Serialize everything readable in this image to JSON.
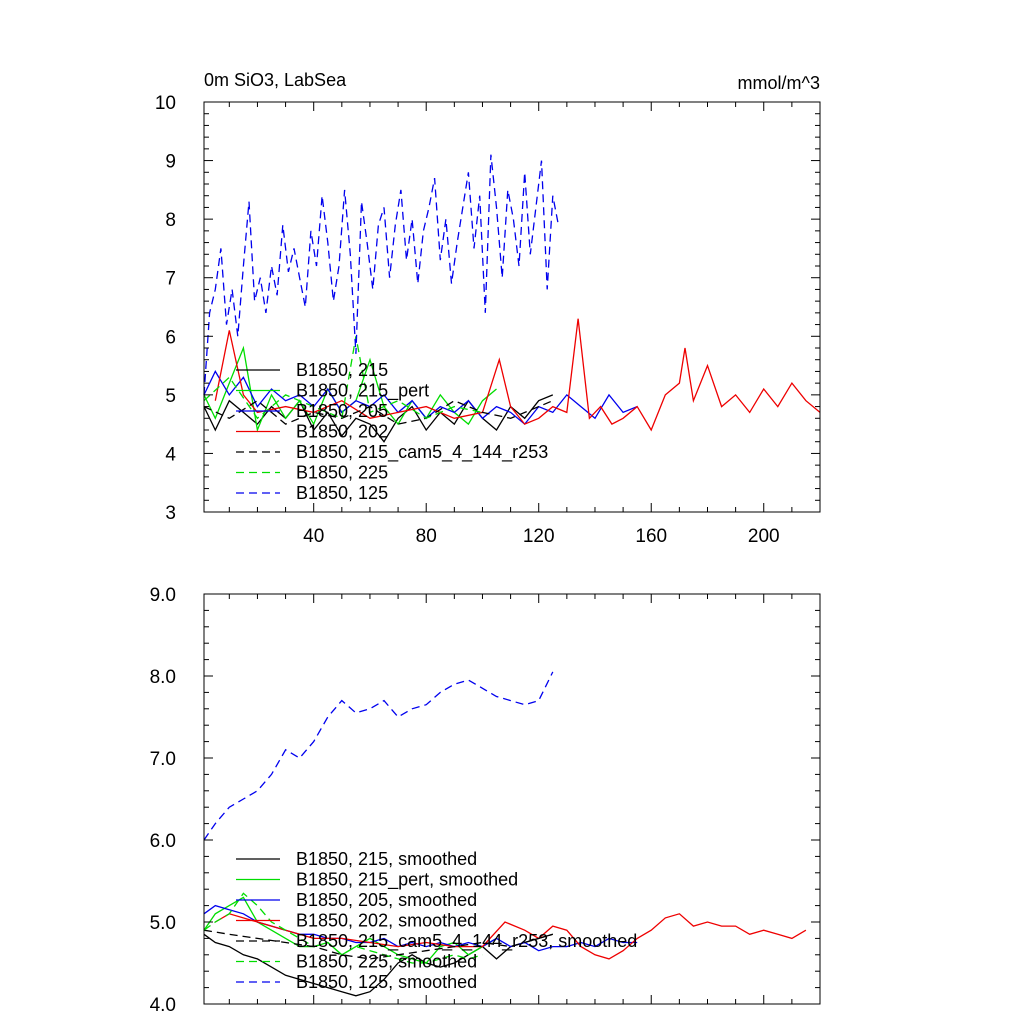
{
  "chart_data": [
    {
      "type": "line",
      "title": "0m SiO3, LabSea",
      "units": "mmol/m^3",
      "xlim": [
        1,
        220
      ],
      "ylim": [
        3,
        10
      ],
      "xticks": [
        40,
        80,
        120,
        160,
        200
      ],
      "yticks": [
        3,
        4,
        5,
        6,
        7,
        8,
        9,
        10
      ],
      "ytick_labels": [
        "3",
        "4",
        "5",
        "6",
        "7",
        "8",
        "9",
        "10"
      ],
      "grid": false,
      "legend_position": "left",
      "series": [
        {
          "name": "B1850, 215",
          "color": "#000000",
          "dash": "solid",
          "x": [
            1,
            5,
            10,
            15,
            20,
            25,
            30,
            35,
            40,
            45,
            50,
            55,
            60,
            65,
            70,
            75,
            80,
            85,
            90,
            95,
            100,
            105,
            110,
            115,
            120,
            125
          ],
          "y": [
            4.8,
            4.4,
            4.9,
            4.7,
            4.5,
            4.8,
            4.6,
            4.9,
            4.4,
            4.7,
            4.3,
            4.6,
            4.5,
            4.2,
            4.6,
            4.8,
            4.4,
            4.7,
            4.5,
            4.9,
            4.6,
            4.4,
            4.8,
            4.6,
            4.9,
            5.0
          ]
        },
        {
          "name": "B1850, 215_pert",
          "color": "#00dd00",
          "dash": "solid",
          "x": [
            1,
            5,
            10,
            15,
            20,
            25,
            30,
            35,
            40,
            45,
            50,
            55,
            60,
            65,
            70,
            75,
            80,
            85,
            90,
            95,
            100,
            105
          ],
          "y": [
            5.0,
            4.6,
            5.2,
            5.8,
            4.4,
            5.0,
            4.6,
            4.9,
            4.5,
            5.1,
            4.7,
            4.9,
            5.6,
            4.8,
            4.5,
            4.9,
            4.6,
            5.0,
            4.7,
            4.5,
            4.9,
            5.1
          ]
        },
        {
          "name": "B1850, 205",
          "color": "#0000ee",
          "dash": "solid",
          "x": [
            1,
            5,
            10,
            15,
            20,
            25,
            30,
            35,
            40,
            45,
            50,
            55,
            60,
            65,
            70,
            75,
            80,
            85,
            90,
            95,
            100,
            105,
            110,
            115,
            120,
            125,
            130,
            135,
            140,
            145,
            150,
            155
          ],
          "y": [
            5.0,
            5.4,
            5.0,
            5.3,
            4.8,
            5.1,
            4.9,
            5.0,
            4.8,
            5.1,
            4.7,
            4.9,
            4.8,
            5.0,
            4.7,
            4.9,
            4.6,
            4.8,
            4.7,
            4.9,
            4.6,
            4.8,
            4.7,
            4.5,
            4.8,
            4.7,
            5.0,
            4.8,
            4.6,
            5.0,
            4.7,
            4.8
          ]
        },
        {
          "name": "B1850, 202",
          "color": "#ee0000",
          "dash": "solid",
          "x": [
            5,
            10,
            15,
            20,
            30,
            40,
            50,
            60,
            70,
            80,
            90,
            100,
            106,
            110,
            115,
            120,
            125,
            130,
            134,
            138,
            142,
            146,
            150,
            155,
            160,
            165,
            170,
            172,
            175,
            180,
            185,
            190,
            195,
            200,
            205,
            210,
            215,
            220
          ],
          "y": [
            4.9,
            6.1,
            5.0,
            4.7,
            4.8,
            4.7,
            4.9,
            4.6,
            4.7,
            4.8,
            4.6,
            4.7,
            5.6,
            4.8,
            4.5,
            4.6,
            4.8,
            4.7,
            6.3,
            4.6,
            4.8,
            4.5,
            4.6,
            4.8,
            4.4,
            5.0,
            5.2,
            5.8,
            4.9,
            5.5,
            4.8,
            5.0,
            4.7,
            5.1,
            4.8,
            5.2,
            4.9,
            4.7
          ]
        },
        {
          "name": "B1850, 215_cam5_4_144_r253",
          "color": "#000000",
          "dash": "dashed",
          "x": [
            1,
            10,
            20,
            30,
            40,
            50,
            60,
            70,
            80,
            90,
            100,
            110,
            120,
            125
          ],
          "y": [
            4.8,
            4.6,
            4.9,
            4.5,
            4.7,
            4.6,
            4.8,
            4.5,
            4.6,
            4.9,
            4.7,
            4.6,
            4.8,
            4.9
          ]
        },
        {
          "name": "B1850, 225",
          "color": "#00dd00",
          "dash": "dashed",
          "x": [
            1,
            10,
            20,
            30,
            40,
            50,
            55,
            60,
            70,
            80,
            90,
            100
          ],
          "y": [
            4.9,
            5.3,
            4.6,
            5.0,
            4.8,
            4.6,
            6.0,
            4.7,
            4.9,
            4.6,
            4.8,
            4.7
          ]
        },
        {
          "name": "B1850, 125",
          "color": "#0000ee",
          "dash": "dashed",
          "x": [
            1,
            3,
            5,
            7,
            9,
            11,
            13,
            15,
            17,
            19,
            21,
            23,
            25,
            27,
            29,
            31,
            33,
            35,
            37,
            39,
            41,
            43,
            45,
            47,
            49,
            51,
            53,
            55,
            57,
            59,
            61,
            63,
            65,
            67,
            69,
            71,
            73,
            75,
            77,
            79,
            81,
            83,
            85,
            87,
            89,
            91,
            93,
            95,
            97,
            99,
            101,
            103,
            105,
            107,
            109,
            111,
            113,
            115,
            117,
            119,
            121,
            123,
            125,
            127
          ],
          "y": [
            5.0,
            6.4,
            6.8,
            7.5,
            6.2,
            6.8,
            6.0,
            7.2,
            8.3,
            6.6,
            7.0,
            6.4,
            7.2,
            6.7,
            7.9,
            7.1,
            7.5,
            7.0,
            6.5,
            7.8,
            7.2,
            8.4,
            7.6,
            6.6,
            7.2,
            8.5,
            7.4,
            5.7,
            8.3,
            7.6,
            6.8,
            7.9,
            8.2,
            7.0,
            7.9,
            8.5,
            7.3,
            8.0,
            6.9,
            7.8,
            8.2,
            8.7,
            7.3,
            8.0,
            6.9,
            7.6,
            8.2,
            8.8,
            7.5,
            8.4,
            6.4,
            9.1,
            8.2,
            7.0,
            8.5,
            8.0,
            7.2,
            8.8,
            7.4,
            8.2,
            9.0,
            6.8,
            8.4,
            7.9
          ]
        }
      ]
    },
    {
      "type": "line",
      "xlim": [
        1,
        220
      ],
      "ylim": [
        4,
        9
      ],
      "yticks": [
        4,
        5,
        6,
        7,
        8,
        9
      ],
      "ytick_labels": [
        "4.0",
        "5.0",
        "6.0",
        "7.0",
        "8.0",
        "9.0"
      ],
      "grid": false,
      "legend_position": "bottom-left",
      "series": [
        {
          "name": "B1850, 215, smoothed",
          "color": "#000000",
          "dash": "solid",
          "x": [
            1,
            5,
            10,
            15,
            20,
            25,
            30,
            35,
            40,
            45,
            50,
            55,
            60,
            65,
            70,
            75,
            80,
            85,
            90,
            95,
            100,
            105,
            110,
            115,
            120,
            125
          ],
          "y": [
            4.85,
            4.75,
            4.7,
            4.6,
            4.55,
            4.45,
            4.35,
            4.3,
            4.25,
            4.2,
            4.15,
            4.1,
            4.15,
            4.3,
            4.5,
            4.6,
            4.5,
            4.45,
            4.5,
            4.6,
            4.7,
            4.55,
            4.7,
            4.75,
            4.8,
            4.85
          ]
        },
        {
          "name": "B1850, 215_pert, smoothed",
          "color": "#00dd00",
          "dash": "solid",
          "x": [
            1,
            5,
            10,
            15,
            20,
            25,
            30,
            35,
            40,
            45,
            50,
            55,
            60,
            65,
            70,
            75,
            80,
            85,
            90,
            95,
            100,
            105
          ],
          "y": [
            4.9,
            5.1,
            5.2,
            5.3,
            5.0,
            4.9,
            4.8,
            4.7,
            4.7,
            4.75,
            4.6,
            4.7,
            4.8,
            4.7,
            4.6,
            4.55,
            4.5,
            4.7,
            4.75,
            4.6,
            4.7,
            4.8
          ]
        },
        {
          "name": "B1850, 205, smoothed",
          "color": "#0000ee",
          "dash": "solid",
          "x": [
            1,
            5,
            10,
            15,
            20,
            25,
            30,
            35,
            40,
            45,
            50,
            55,
            60,
            65,
            70,
            75,
            80,
            85,
            90,
            95,
            100,
            105,
            110,
            115,
            120,
            125,
            130,
            135,
            140,
            145,
            150,
            155
          ],
          "y": [
            5.1,
            5.2,
            5.15,
            5.1,
            5.0,
            4.95,
            4.9,
            4.85,
            4.85,
            4.8,
            4.8,
            4.75,
            4.75,
            4.8,
            4.7,
            4.75,
            4.7,
            4.75,
            4.7,
            4.75,
            4.7,
            4.8,
            4.7,
            4.75,
            4.65,
            4.7,
            4.7,
            4.75,
            4.7,
            4.8,
            4.75,
            4.75
          ]
        },
        {
          "name": "B1850, 202, smoothed",
          "color": "#ee0000",
          "dash": "solid",
          "x": [
            5,
            10,
            20,
            30,
            40,
            50,
            60,
            70,
            80,
            90,
            100,
            108,
            115,
            120,
            125,
            130,
            135,
            140,
            145,
            150,
            155,
            160,
            165,
            170,
            175,
            180,
            185,
            190,
            195,
            200,
            205,
            210,
            215
          ],
          "y": [
            5.0,
            5.1,
            5.0,
            4.9,
            4.8,
            4.8,
            4.75,
            4.7,
            4.75,
            4.7,
            4.7,
            5.0,
            4.9,
            4.8,
            4.95,
            4.9,
            4.7,
            4.6,
            4.55,
            4.65,
            4.8,
            4.9,
            5.05,
            5.1,
            4.95,
            5.0,
            4.95,
            4.95,
            4.85,
            4.9,
            4.85,
            4.8,
            4.9
          ]
        },
        {
          "name": "B1850, 215_cam5_4_144_r253, smoothed",
          "color": "#000000",
          "dash": "dashed",
          "x": [
            1,
            10,
            20,
            30,
            40,
            50,
            60,
            70,
            80,
            90,
            100,
            110,
            120,
            125
          ],
          "y": [
            4.9,
            4.85,
            4.8,
            4.75,
            4.7,
            4.6,
            4.55,
            4.6,
            4.65,
            4.7,
            4.75,
            4.7,
            4.8,
            4.85
          ]
        },
        {
          "name": "B1850, 225, smoothed",
          "color": "#00dd00",
          "dash": "dashed",
          "x": [
            1,
            5,
            10,
            15,
            20,
            25,
            30,
            35,
            40,
            45,
            50,
            55,
            60,
            65,
            70,
            75,
            80,
            85,
            90,
            95,
            100
          ],
          "y": [
            4.9,
            5.0,
            5.1,
            5.35,
            5.2,
            5.0,
            4.9,
            4.8,
            4.7,
            4.75,
            4.6,
            4.7,
            4.65,
            4.6,
            4.55,
            4.5,
            4.5,
            4.55,
            4.6,
            4.55,
            4.6
          ]
        },
        {
          "name": "B1850, 125, smoothed",
          "color": "#0000ee",
          "dash": "dashed",
          "x": [
            1,
            5,
            10,
            15,
            20,
            25,
            30,
            35,
            40,
            45,
            50,
            55,
            60,
            65,
            70,
            75,
            80,
            85,
            90,
            95,
            100,
            105,
            110,
            115,
            120,
            125
          ],
          "y": [
            6.0,
            6.2,
            6.4,
            6.5,
            6.6,
            6.8,
            7.1,
            7.0,
            7.2,
            7.5,
            7.7,
            7.55,
            7.6,
            7.7,
            7.5,
            7.6,
            7.65,
            7.8,
            7.9,
            7.95,
            7.85,
            7.75,
            7.7,
            7.65,
            7.7,
            8.05
          ]
        }
      ]
    }
  ]
}
